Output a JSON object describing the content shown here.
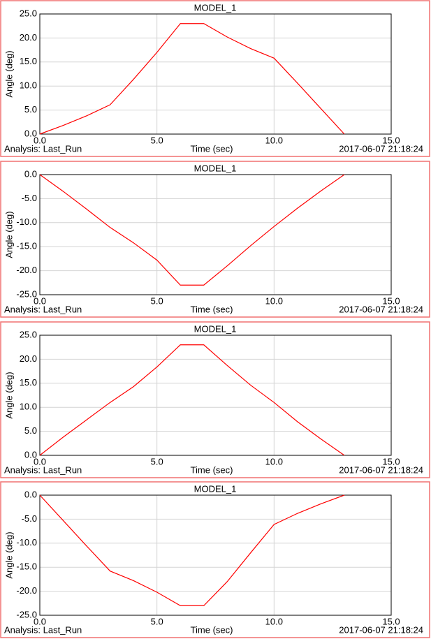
{
  "chart_data": [
    {
      "type": "line",
      "title": "MODEL_1",
      "x_label": "Time (sec)",
      "y_label": "Angle (deg)",
      "analysis": "Analysis: Last_Run",
      "timestamp": "2017-06-07 21:18:24",
      "x": [
        0,
        1,
        2,
        3,
        4,
        5,
        6,
        7,
        8,
        9,
        10,
        11,
        12,
        13
      ],
      "values": [
        0,
        1.8,
        3.8,
        6.1,
        11.4,
        17,
        23,
        23,
        20.2,
        17.8,
        15.8,
        10.6,
        5.3,
        0
      ],
      "color": "#ff0000",
      "xlim": [
        0,
        15
      ],
      "xticks": [
        {
          "value": 0,
          "label": "0.0"
        },
        {
          "value": 5,
          "label": "5.0"
        },
        {
          "value": 10,
          "label": "10.0"
        },
        {
          "value": 15,
          "label": "15.0"
        }
      ],
      "ylim": [
        0,
        25
      ],
      "yticks": [
        {
          "value": 0,
          "label": "0.0"
        },
        {
          "value": 5,
          "label": "5.0"
        },
        {
          "value": 10,
          "label": "10.0"
        },
        {
          "value": 15,
          "label": "15.0"
        },
        {
          "value": 20,
          "label": "20.0"
        },
        {
          "value": 25,
          "label": "25.0"
        }
      ],
      "grid": true
    },
    {
      "type": "line",
      "title": "MODEL_1",
      "x_label": "Time (sec)",
      "y_label": "Angle (deg)",
      "analysis": "Analysis: Last_Run",
      "timestamp": "2017-06-07 21:18:24",
      "x": [
        0,
        1,
        2,
        3,
        4,
        5,
        6,
        7,
        8,
        9,
        10,
        11,
        12,
        13
      ],
      "values": [
        0,
        -3.5,
        -7.2,
        -11,
        -14.2,
        -17.8,
        -23,
        -23,
        -19,
        -14.8,
        -10.8,
        -7,
        -3.4,
        0
      ],
      "color": "#ff0000",
      "xlim": [
        0,
        15
      ],
      "xticks": [
        {
          "value": 0,
          "label": "0.0"
        },
        {
          "value": 5,
          "label": "5.0"
        },
        {
          "value": 10,
          "label": "10.0"
        },
        {
          "value": 15,
          "label": "15.0"
        }
      ],
      "ylim": [
        -25,
        0
      ],
      "yticks": [
        {
          "value": -25,
          "label": "-25.0"
        },
        {
          "value": -20,
          "label": "-20.0"
        },
        {
          "value": -15,
          "label": "-15.0"
        },
        {
          "value": -10,
          "label": "-10.0"
        },
        {
          "value": -5,
          "label": "-5.0"
        },
        {
          "value": 0,
          "label": "0.0"
        }
      ],
      "grid": true
    },
    {
      "type": "line",
      "title": "MODEL_1",
      "x_label": "Time (sec)",
      "y_label": "Angle (deg)",
      "analysis": "Analysis: Last_Run",
      "timestamp": "2017-06-07 21:18:24",
      "x": [
        0,
        1,
        2,
        3,
        4,
        5,
        6,
        7,
        8,
        9,
        10,
        11,
        12,
        13
      ],
      "values": [
        0,
        3.8,
        7.4,
        11,
        14.3,
        18.4,
        23,
        23,
        18.7,
        14.6,
        11,
        7,
        3.4,
        0
      ],
      "color": "#ff0000",
      "xlim": [
        0,
        15
      ],
      "xticks": [
        {
          "value": 0,
          "label": "0.0"
        },
        {
          "value": 5,
          "label": "5.0"
        },
        {
          "value": 10,
          "label": "10.0"
        },
        {
          "value": 15,
          "label": "15.0"
        }
      ],
      "ylim": [
        0,
        25
      ],
      "yticks": [
        {
          "value": 0,
          "label": "0.0"
        },
        {
          "value": 5,
          "label": "5.0"
        },
        {
          "value": 10,
          "label": "10.0"
        },
        {
          "value": 15,
          "label": "15.0"
        },
        {
          "value": 20,
          "label": "20.0"
        },
        {
          "value": 25,
          "label": "25.0"
        }
      ],
      "grid": true
    },
    {
      "type": "line",
      "title": "MODEL_1",
      "x_label": "Time (sec)",
      "y_label": "Angle (deg)",
      "analysis": "Analysis: Last_Run",
      "timestamp": "2017-06-07 21:18:24",
      "x": [
        0,
        1,
        2,
        3,
        4,
        5,
        6,
        7,
        8,
        9,
        10,
        11,
        12,
        13
      ],
      "values": [
        0,
        -5.3,
        -10.6,
        -15.8,
        -17.8,
        -20.2,
        -23,
        -23,
        -18,
        -12,
        -6.1,
        -3.8,
        -1.8,
        0
      ],
      "color": "#ff0000",
      "xlim": [
        0,
        15
      ],
      "xticks": [
        {
          "value": 0,
          "label": "0.0"
        },
        {
          "value": 5,
          "label": "5.0"
        },
        {
          "value": 10,
          "label": "10.0"
        },
        {
          "value": 15,
          "label": "15.0"
        }
      ],
      "ylim": [
        -25,
        0
      ],
      "yticks": [
        {
          "value": -25,
          "label": "-25.0"
        },
        {
          "value": -20,
          "label": "-20.0"
        },
        {
          "value": -15,
          "label": "-15.0"
        },
        {
          "value": -10,
          "label": "-10.0"
        },
        {
          "value": -5,
          "label": "-5.0"
        },
        {
          "value": 0,
          "label": "0.0"
        }
      ],
      "grid": true
    }
  ]
}
